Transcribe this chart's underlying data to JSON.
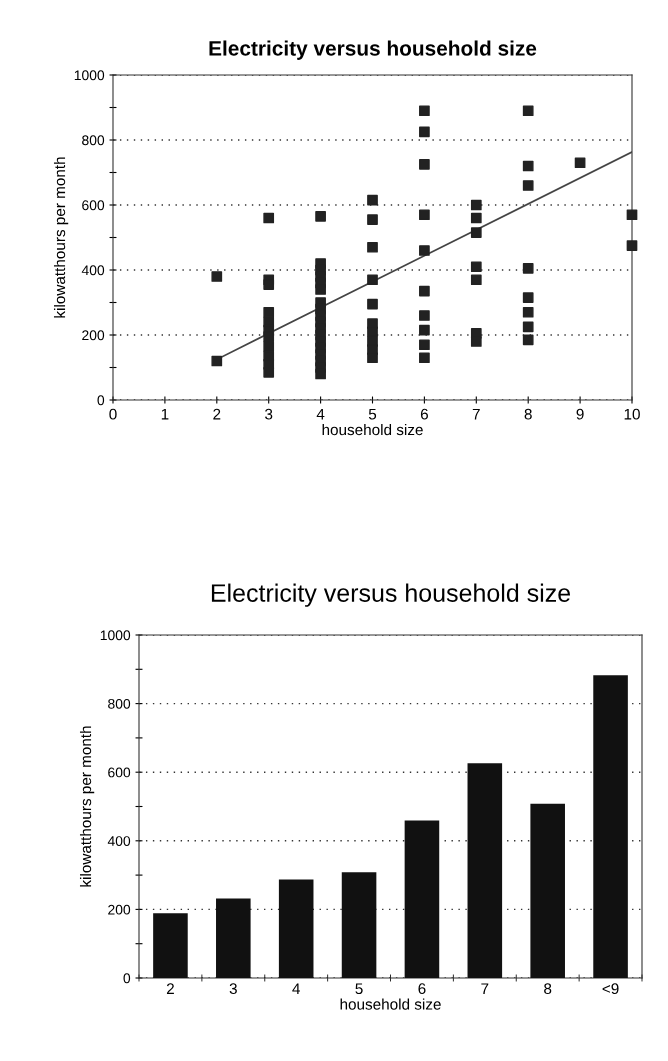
{
  "chart_data": [
    {
      "type": "scatter",
      "title": "Electricity versus household size",
      "xlabel": "household size",
      "ylabel": "kilowatthours per month",
      "xlim": [
        0,
        10
      ],
      "xticks": [
        0,
        1,
        2,
        3,
        4,
        5,
        6,
        7,
        8,
        9,
        10
      ],
      "ylim": [
        0,
        1000
      ],
      "yticks": [
        0,
        {
          "value": 100,
          "label": null
        },
        200,
        {
          "value": 300,
          "label": null
        },
        400,
        {
          "value": 500,
          "label": null
        },
        600,
        {
          "value": 700,
          "label": null
        },
        800,
        {
          "value": 900,
          "label": null
        },
        1000
      ],
      "grid": "y",
      "series": [
        {
          "type": "scatter",
          "marker": "square",
          "color": "#222222",
          "x": [
            2,
            2,
            3,
            3,
            3,
            3,
            3,
            3,
            3,
            3,
            3,
            3,
            3,
            4,
            4,
            4,
            4,
            4,
            4,
            4,
            4,
            4,
            4,
            4,
            4,
            4,
            4,
            4,
            4,
            4,
            4,
            5,
            5,
            5,
            5,
            5,
            5,
            5,
            5,
            5,
            5,
            6,
            6,
            6,
            6,
            6,
            6,
            6,
            6,
            6,
            6,
            7,
            7,
            7,
            7,
            7,
            7,
            7,
            8,
            8,
            8,
            8,
            8,
            8,
            8,
            8,
            9,
            10,
            10
          ],
          "values": [
            380,
            120,
            560,
            370,
            355,
            270,
            240,
            215,
            195,
            165,
            135,
            110,
            85,
            565,
            420,
            400,
            380,
            360,
            340,
            300,
            280,
            260,
            240,
            220,
            200,
            180,
            160,
            140,
            120,
            100,
            80,
            615,
            555,
            470,
            370,
            295,
            235,
            210,
            180,
            155,
            130,
            890,
            825,
            725,
            570,
            460,
            335,
            260,
            215,
            170,
            130,
            600,
            560,
            515,
            410,
            370,
            205,
            180,
            890,
            720,
            660,
            405,
            315,
            270,
            225,
            185,
            730,
            570,
            475
          ]
        },
        {
          "type": "line",
          "color": "#444444",
          "x": [
            2,
            10
          ],
          "values": [
            125,
            763
          ]
        }
      ]
    },
    {
      "type": "bar",
      "title": "Electricity versus household size",
      "xlabel": "household size",
      "ylabel": "kilowatthours per month",
      "categories": [
        "2",
        "3",
        "4",
        "5",
        "6",
        "7",
        "8",
        "<9"
      ],
      "values": [
        189,
        232,
        287,
        308,
        459,
        626,
        508,
        883
      ],
      "color": "#111111",
      "ylim": [
        0,
        1000
      ],
      "yticks": [
        0,
        {
          "value": 100,
          "label": null
        },
        200,
        {
          "value": 300,
          "label": null
        },
        400,
        {
          "value": 500,
          "label": null
        },
        600,
        {
          "value": 700,
          "label": null
        },
        800,
        {
          "value": 900,
          "label": null
        },
        1000
      ],
      "grid": "y"
    }
  ]
}
